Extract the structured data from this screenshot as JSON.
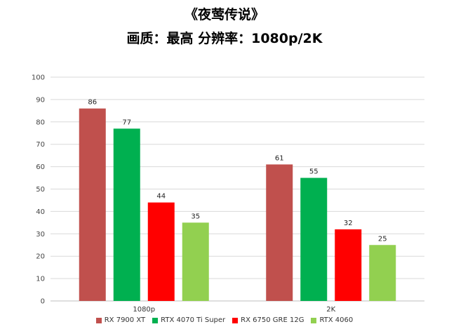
{
  "title": "《夜莺传说》",
  "subtitle": "画质：最高  分辨率：1080p/2K",
  "chart_data": {
    "type": "bar",
    "categories": [
      "1080p",
      "2K"
    ],
    "series": [
      {
        "name": "RX 7900 XT",
        "color": "#c0504d",
        "values": [
          86,
          61
        ]
      },
      {
        "name": "RTX 4070 Ti Super",
        "color": "#00b050",
        "values": [
          77,
          55
        ]
      },
      {
        "name": "RX 6750 GRE 12G",
        "color": "#ff0000",
        "values": [
          44,
          32
        ]
      },
      {
        "name": "RTX 4060",
        "color": "#92d050",
        "values": [
          35,
          25
        ]
      }
    ],
    "ylim": [
      0,
      100
    ],
    "yticks": [
      0,
      10,
      20,
      30,
      40,
      50,
      60,
      70,
      80,
      90,
      100
    ],
    "grid": true,
    "legend": "bottom"
  }
}
